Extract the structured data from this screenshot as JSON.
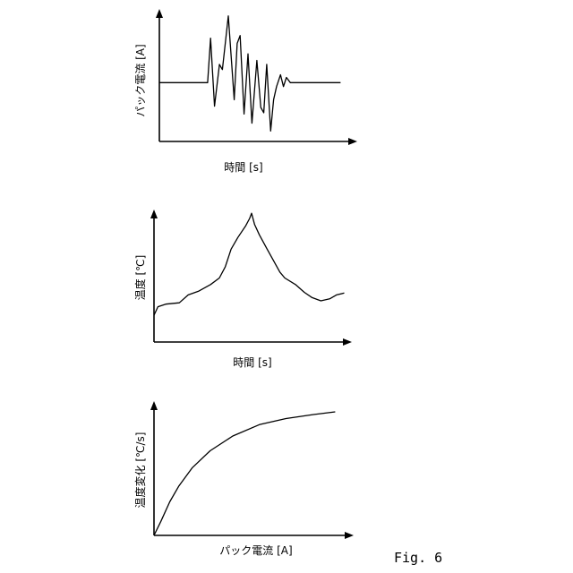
{
  "figure_label": "Fig. 6",
  "colors": {
    "line": "#000000",
    "background": "#ffffff"
  },
  "chart_data": [
    {
      "type": "line",
      "xlabel": "時間 [s]",
      "ylabel": "パック電流 [A]",
      "grid": false,
      "xlim": [
        0,
        100
      ],
      "ylim": [
        0,
        100
      ],
      "x": [
        0,
        24.5,
        26,
        28,
        30.5,
        32,
        35,
        38,
        39.5,
        41,
        43,
        45,
        47,
        49.5,
        51.5,
        53,
        54.5,
        56.5,
        58,
        59.5,
        61.5,
        63,
        64.5,
        66.5,
        92
      ],
      "y": [
        45,
        45,
        79,
        27,
        59,
        55,
        96,
        32,
        75,
        81,
        21,
        67,
        14,
        62,
        26,
        22,
        59,
        8,
        32,
        42,
        51,
        42,
        49,
        45,
        45
      ]
    },
    {
      "type": "line",
      "xlabel": "時間 [s]",
      "ylabel": "温度 [℃]",
      "grid": false,
      "xlim": [
        0,
        100
      ],
      "ylim": [
        0,
        100
      ],
      "x": [
        0,
        2,
        6,
        13,
        17.5,
        23,
        29,
        33.5,
        36.5,
        39.5,
        43,
        47,
        49,
        50,
        51.5,
        54,
        58,
        61.5,
        64.5,
        67,
        72.5,
        77,
        81,
        85.5,
        90,
        93.5,
        97.5
      ],
      "y": [
        20.5,
        27,
        29,
        30,
        36,
        39,
        44,
        49,
        57.5,
        71,
        80,
        89,
        94.5,
        98.5,
        90,
        82,
        71,
        61.5,
        53.5,
        49,
        44,
        38,
        34,
        31.5,
        33,
        36,
        37.5
      ]
    },
    {
      "type": "line",
      "xlabel": "パック電流 [A]",
      "ylabel": "温度変化 [℃/s]",
      "grid": false,
      "xlim": [
        0,
        100
      ],
      "ylim": [
        0,
        100
      ],
      "x": [
        0,
        3.5,
        8,
        12.5,
        19.5,
        28.5,
        40,
        53.5,
        67,
        81,
        92
      ],
      "y": [
        0,
        10.5,
        25,
        36.5,
        50.5,
        63,
        74,
        82.5,
        87,
        90,
        92
      ]
    }
  ]
}
